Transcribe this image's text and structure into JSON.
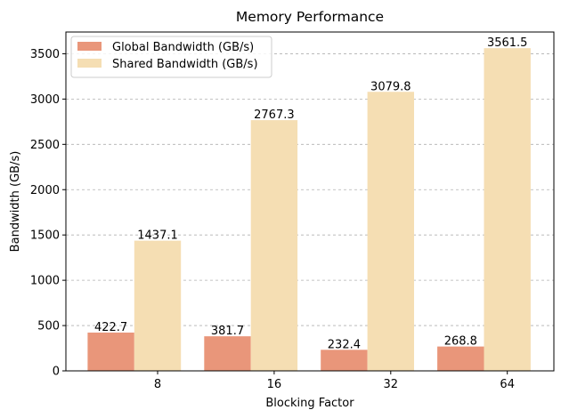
{
  "chart_data": {
    "type": "bar",
    "title": "Memory Performance",
    "xlabel": "Blocking Factor",
    "ylabel": "Bandwidth (GB/s)",
    "categories": [
      "8",
      "16",
      "32",
      "64"
    ],
    "series": [
      {
        "name": "Global Bandwidth (GB/s)",
        "color": "#E9967A",
        "values": [
          422.7,
          381.7,
          232.4,
          268.8
        ],
        "labels": [
          "422.7",
          "381.7",
          "232.4",
          "268.8"
        ]
      },
      {
        "name": "Shared Bandwidth (GB/s)",
        "color": "#F5DEB3",
        "values": [
          1437.1,
          2767.3,
          3079.8,
          3561.5
        ],
        "labels": [
          "1437.1",
          "2767.3",
          "3079.8",
          "3561.5"
        ]
      }
    ],
    "ylim": [
      0,
      3740
    ],
    "yticks": [
      0,
      500,
      1000,
      1500,
      2000,
      2500,
      3000,
      3500
    ],
    "ytick_labels": [
      "0",
      "500",
      "1000",
      "1500",
      "2000",
      "2500",
      "3000",
      "3500"
    ],
    "grid": "y-dashed",
    "legend_position": "upper-left"
  }
}
